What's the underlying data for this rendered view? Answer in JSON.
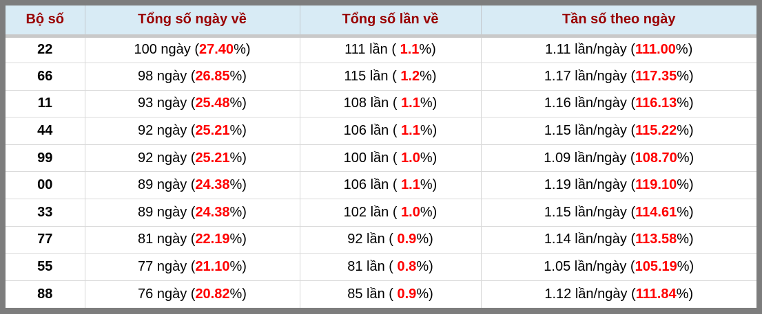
{
  "colors": {
    "frame_gray": "#7d7d7d",
    "header_bg": "#d8ebf5",
    "header_text": "#990000",
    "highlight_red": "#ff0000",
    "header_band": "#c9c9c9",
    "cell_border": "#d6d6d6"
  },
  "table": {
    "columns": [
      {
        "label": "Bộ số"
      },
      {
        "label": "Tổng số ngày về"
      },
      {
        "label": "Tổng số lần về"
      },
      {
        "label": "Tần số theo ngày"
      }
    ],
    "rows": [
      {
        "pair": "22",
        "days": {
          "pre": "100 ngày (",
          "red": "27.40",
          "post": "%)"
        },
        "times": {
          "pre": "111 lần ( ",
          "red": "1.1",
          "post": "%)"
        },
        "freq": {
          "pre": "1.11 lần/ngày (",
          "red": "111.00",
          "post": "%)"
        }
      },
      {
        "pair": "66",
        "days": {
          "pre": "98 ngày (",
          "red": "26.85",
          "post": "%)"
        },
        "times": {
          "pre": "115 lần ( ",
          "red": "1.2",
          "post": "%)"
        },
        "freq": {
          "pre": "1.17 lần/ngày (",
          "red": "117.35",
          "post": "%)"
        }
      },
      {
        "pair": "11",
        "days": {
          "pre": "93 ngày (",
          "red": "25.48",
          "post": "%)"
        },
        "times": {
          "pre": "108 lần ( ",
          "red": "1.1",
          "post": "%)"
        },
        "freq": {
          "pre": "1.16 lần/ngày (",
          "red": "116.13",
          "post": "%)"
        }
      },
      {
        "pair": "44",
        "days": {
          "pre": "92 ngày (",
          "red": "25.21",
          "post": "%)"
        },
        "times": {
          "pre": "106 lần ( ",
          "red": "1.1",
          "post": "%)"
        },
        "freq": {
          "pre": "1.15 lần/ngày (",
          "red": "115.22",
          "post": "%)"
        }
      },
      {
        "pair": "99",
        "days": {
          "pre": "92 ngày (",
          "red": "25.21",
          "post": "%)"
        },
        "times": {
          "pre": "100 lần ( ",
          "red": "1.0",
          "post": "%)"
        },
        "freq": {
          "pre": "1.09 lần/ngày (",
          "red": "108.70",
          "post": "%)"
        }
      },
      {
        "pair": "00",
        "days": {
          "pre": "89 ngày (",
          "red": "24.38",
          "post": "%)"
        },
        "times": {
          "pre": "106 lần ( ",
          "red": "1.1",
          "post": "%)"
        },
        "freq": {
          "pre": "1.19 lần/ngày (",
          "red": "119.10",
          "post": "%)"
        }
      },
      {
        "pair": "33",
        "days": {
          "pre": "89 ngày (",
          "red": "24.38",
          "post": "%)"
        },
        "times": {
          "pre": "102 lần ( ",
          "red": "1.0",
          "post": "%)"
        },
        "freq": {
          "pre": "1.15 lần/ngày (",
          "red": "114.61",
          "post": "%)"
        }
      },
      {
        "pair": "77",
        "days": {
          "pre": "81 ngày (",
          "red": "22.19",
          "post": "%)"
        },
        "times": {
          "pre": "92 lần ( ",
          "red": "0.9",
          "post": "%)"
        },
        "freq": {
          "pre": "1.14 lần/ngày (",
          "red": "113.58",
          "post": "%)"
        }
      },
      {
        "pair": "55",
        "days": {
          "pre": "77 ngày (",
          "red": "21.10",
          "post": "%)"
        },
        "times": {
          "pre": "81 lần ( ",
          "red": "0.8",
          "post": "%)"
        },
        "freq": {
          "pre": "1.05 lần/ngày (",
          "red": "105.19",
          "post": "%)"
        }
      },
      {
        "pair": "88",
        "days": {
          "pre": "76 ngày (",
          "red": "20.82",
          "post": "%)"
        },
        "times": {
          "pre": "85 lần ( ",
          "red": "0.9",
          "post": "%)"
        },
        "freq": {
          "pre": "1.12 lần/ngày (",
          "red": "111.84",
          "post": "%)"
        }
      }
    ]
  }
}
